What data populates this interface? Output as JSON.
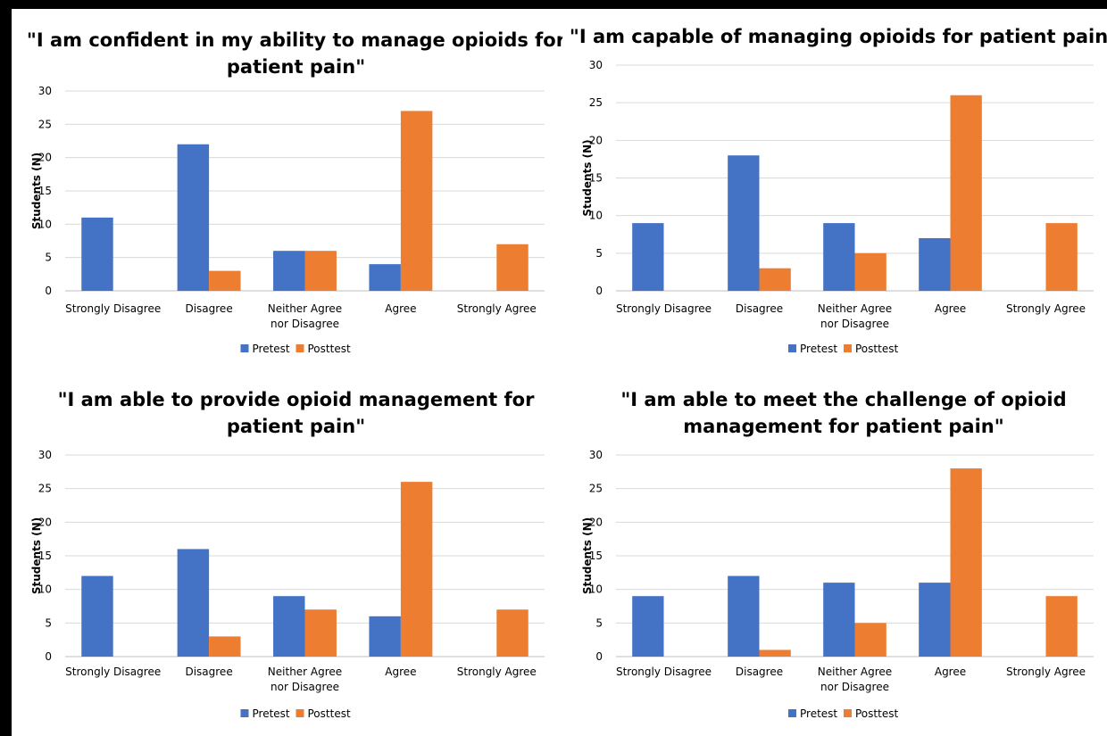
{
  "chart_data": [
    {
      "type": "bar",
      "title": "\"I am confident in my ability to manage opioids for patient pain\"",
      "title_lines": [
        "\"I am confident in my ability to manage opioids for",
        "patient pain\""
      ],
      "ylabel": "Students (N)",
      "ylim": [
        0,
        30
      ],
      "yticks": [
        "0",
        "5",
        "10",
        "15",
        "20",
        "25",
        "30"
      ],
      "categories": [
        "Strongly Disagree",
        "Disagree",
        "Neither Agree nor Disagree",
        "Agree",
        "Strongly Agree"
      ],
      "category_lines": [
        [
          "Strongly Disagree"
        ],
        [
          "Disagree"
        ],
        [
          "Neither Agree",
          "nor Disagree"
        ],
        [
          "Agree"
        ],
        [
          "Strongly Agree"
        ]
      ],
      "series": [
        {
          "name": "Pretest",
          "values": [
            11,
            22,
            6,
            4,
            0
          ]
        },
        {
          "name": "Posttest",
          "values": [
            0,
            3,
            6,
            27,
            7
          ]
        }
      ],
      "grid": true,
      "legend": "bottom"
    },
    {
      "type": "bar",
      "title": "\"I am capable of managing opioids for patient pain\"",
      "title_lines": [
        "\"I am capable of managing opioids for patient pain\""
      ],
      "ylabel": "Students (N)",
      "ylim": [
        0,
        30
      ],
      "yticks": [
        "0",
        "5",
        "10",
        "15",
        "20",
        "25",
        "30"
      ],
      "categories": [
        "Strongly Disagree",
        "Disagree",
        "Neither Agree nor Disagree",
        "Agree",
        "Strongly Agree"
      ],
      "category_lines": [
        [
          "Strongly Disagree"
        ],
        [
          "Disagree"
        ],
        [
          "Neither Agree",
          "nor Disagree"
        ],
        [
          "Agree"
        ],
        [
          "Strongly Agree"
        ]
      ],
      "series": [
        {
          "name": "Pretest",
          "values": [
            9,
            18,
            9,
            7,
            0
          ]
        },
        {
          "name": "Posttest",
          "values": [
            0,
            3,
            5,
            26,
            9
          ]
        }
      ],
      "grid": true,
      "legend": "bottom"
    },
    {
      "type": "bar",
      "title": "\"I am able to provide opioid management for patient pain\"",
      "title_lines": [
        "\"I am able to provide opioid management for",
        "patient pain\""
      ],
      "ylabel": "Students (N)",
      "ylim": [
        0,
        30
      ],
      "yticks": [
        "0",
        "5",
        "10",
        "15",
        "20",
        "25",
        "30"
      ],
      "categories": [
        "Strongly Disagree",
        "Disagree",
        "Neither Agree nor Disagree",
        "Agree",
        "Strongly Agree"
      ],
      "category_lines": [
        [
          "Strongly Disagree"
        ],
        [
          "Disagree"
        ],
        [
          "Neither Agree",
          "nor Disagree"
        ],
        [
          "Agree"
        ],
        [
          "Strongly Agree"
        ]
      ],
      "series": [
        {
          "name": "Pretest",
          "values": [
            12,
            16,
            9,
            6,
            0
          ]
        },
        {
          "name": "Posttest",
          "values": [
            0,
            3,
            7,
            26,
            7
          ]
        }
      ],
      "grid": true,
      "legend": "bottom"
    },
    {
      "type": "bar",
      "title": "\"I am able to meet the challenge of opioid management for patient pain\"",
      "title_lines": [
        "\"I am able to meet the challenge of opioid",
        "management for patient pain\""
      ],
      "ylabel": "Students (N)",
      "ylim": [
        0,
        30
      ],
      "yticks": [
        "0",
        "5",
        "10",
        "15",
        "20",
        "25",
        "30"
      ],
      "categories": [
        "Strongly Disagree",
        "Disagree",
        "Neither Agree nor Disagree",
        "Agree",
        "Strongly Agree"
      ],
      "category_lines": [
        [
          "Strongly Disagree"
        ],
        [
          "Disagree"
        ],
        [
          "Neither Agree",
          "nor Disagree"
        ],
        [
          "Agree"
        ],
        [
          "Strongly Agree"
        ]
      ],
      "series": [
        {
          "name": "Pretest",
          "values": [
            9,
            12,
            11,
            11,
            0
          ]
        },
        {
          "name": "Posttest",
          "values": [
            0,
            1,
            5,
            28,
            9
          ]
        }
      ],
      "grid": true,
      "legend": "bottom"
    }
  ],
  "colors": {
    "pretest": "#4472C4",
    "posttest": "#ED7D31",
    "grid": "#D9D9D9",
    "axis": "#BFBFBF"
  }
}
